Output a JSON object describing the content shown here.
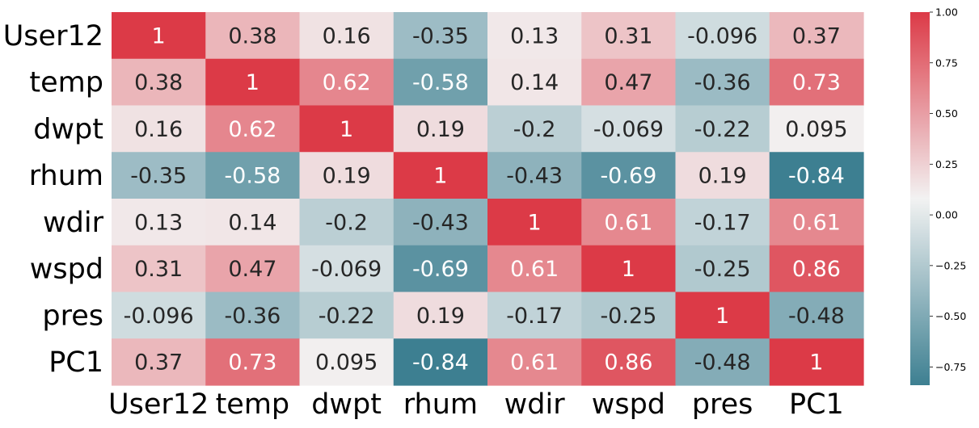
{
  "chart_data": {
    "type": "heatmap",
    "title": "",
    "xlabel": "",
    "ylabel": "",
    "rows": [
      "User12",
      "temp",
      "dwpt",
      "rhum",
      "wdir",
      "wspd",
      "pres",
      "PC1"
    ],
    "columns": [
      "User12",
      "temp",
      "dwpt",
      "rhum",
      "wdir",
      "wspd",
      "pres",
      "PC1"
    ],
    "values": [
      [
        1,
        0.38,
        0.16,
        -0.35,
        0.13,
        0.31,
        -0.096,
        0.37
      ],
      [
        0.38,
        1,
        0.62,
        -0.58,
        0.14,
        0.47,
        -0.36,
        0.73
      ],
      [
        0.16,
        0.62,
        1,
        0.19,
        -0.2,
        -0.069,
        -0.22,
        0.095
      ],
      [
        -0.35,
        -0.58,
        0.19,
        1,
        -0.43,
        -0.69,
        0.19,
        -0.84
      ],
      [
        0.13,
        0.14,
        -0.2,
        -0.43,
        1,
        0.61,
        -0.17,
        0.61
      ],
      [
        0.31,
        0.47,
        -0.069,
        -0.69,
        0.61,
        1,
        -0.25,
        0.86
      ],
      [
        -0.096,
        -0.36,
        -0.22,
        0.19,
        -0.17,
        -0.25,
        1,
        -0.48
      ],
      [
        0.37,
        0.73,
        0.095,
        -0.84,
        0.61,
        0.86,
        -0.48,
        1
      ]
    ],
    "colorbar": {
      "range": [
        -0.84,
        1
      ],
      "ticks": [
        1,
        0.75,
        0.5,
        0.25,
        0,
        -0.25,
        -0.5,
        -0.75
      ],
      "tick_labels": [
        "1.00",
        "0.75",
        "0.50",
        "0.25",
        "0.00",
        "−0.25",
        "−0.50",
        "−0.75"
      ],
      "low_color": "#3d7f91",
      "mid_color": "#f2f2f2",
      "high_color": "#dc3a47"
    },
    "annotations": true,
    "grid": false
  }
}
